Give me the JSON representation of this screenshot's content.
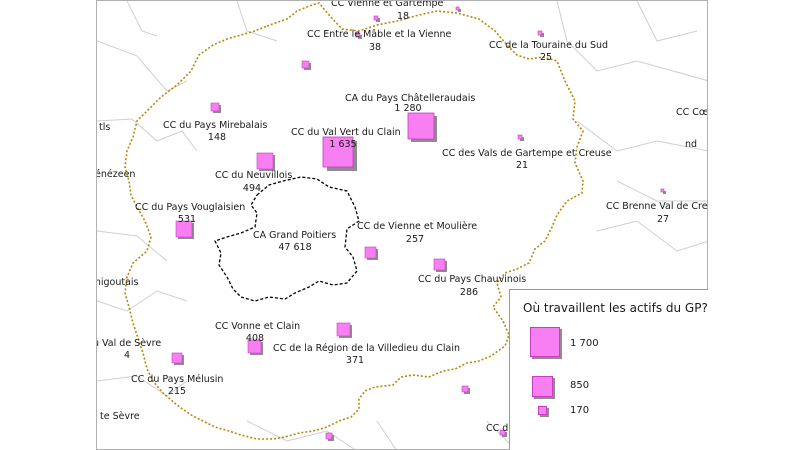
{
  "colors": {
    "symbol_fill": "#f77ff2",
    "symbol_stroke": "#c83ec2",
    "shadow": "#8d8d8d",
    "border_dots": "#b8860b",
    "commune_lines": "#cfcfcf",
    "gp_outline": "#000000"
  },
  "places": [
    {
      "name": "CC Vienne et Gartempe",
      "value": "18"
    },
    {
      "name": "CC Entre le Mâble et la Vienne",
      "value": "38"
    },
    {
      "name": "CC de la Touraine du Sud",
      "value": "25"
    },
    {
      "name": "CA du Pays Châtelleraudais",
      "value": "1 280"
    },
    {
      "name": "CC du Pays Mirebalais",
      "value": "148"
    },
    {
      "name": "CC du Val Vert du Clain",
      "value": "1 635"
    },
    {
      "name": "CC des Vals de Gartempe et Creuse",
      "value": "21"
    },
    {
      "name": "CC du Neuvillois",
      "value": "494"
    },
    {
      "name": "CC du Pays Vouglaisien",
      "value": "531"
    },
    {
      "name": "CA Grand Poitiers",
      "value": "47 618"
    },
    {
      "name": "CC de Vienne et Moulière",
      "value": "257"
    },
    {
      "name": "CC du Pays Chauvinois",
      "value": "286"
    },
    {
      "name": "CC Vonne et Clain",
      "value": "408"
    },
    {
      "name": "CC de la Région de la Villedieu du Clain",
      "value": "371"
    },
    {
      "name": "CC du Pays Mélusin",
      "value": "215"
    },
    {
      "name": "CC Brenne Val de Creuse",
      "value": "27"
    }
  ],
  "edge_labels": [
    {
      "id": "coeur",
      "text": "CC Cœu"
    },
    {
      "id": "nd",
      "text": "nd"
    },
    {
      "id": "tls",
      "text": "tls"
    },
    {
      "id": "henezeen",
      "text": "hénézeen"
    },
    {
      "id": "enigoutais",
      "text": "énigoutais"
    },
    {
      "id": "valsevre",
      "text": "u Val de Sèvre"
    },
    {
      "id": "n4",
      "text": "4"
    },
    {
      "id": "tesevre",
      "text": "te Sèvre"
    },
    {
      "id": "ccdu",
      "text": "CC du"
    }
  ],
  "unlabeled_symbols": 8,
  "legend": {
    "title": "Où travaillent les actifs du GP?",
    "items": [
      {
        "value": "1 700"
      },
      {
        "value": "850"
      },
      {
        "value": "170"
      }
    ]
  }
}
